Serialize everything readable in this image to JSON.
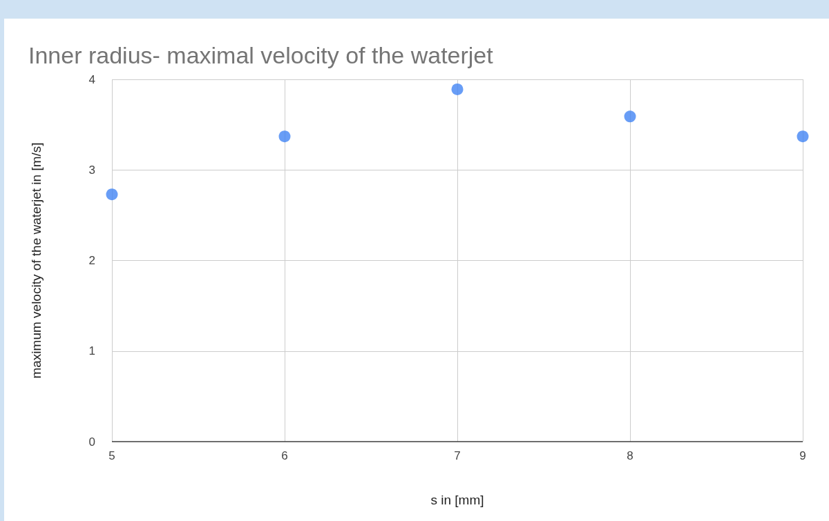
{
  "chart_data": {
    "type": "scatter",
    "title": "Inner radius- maximal velocity of the waterjet",
    "xlabel": "s in [mm]",
    "ylabel": "maximum velocity of the waterjet in [m/s]",
    "x": [
      5,
      6,
      7,
      8,
      9
    ],
    "series": [
      {
        "color": "#4285f4",
        "values": [
          2.73,
          3.37,
          3.89,
          3.59,
          3.37
        ]
      }
    ],
    "xlim": [
      5,
      9
    ],
    "xticks": [
      5,
      6,
      7,
      8,
      9
    ],
    "ylim": [
      0,
      4
    ],
    "yticks": [
      0,
      1,
      2,
      3,
      4
    ],
    "grid": true,
    "marker": "circle"
  }
}
